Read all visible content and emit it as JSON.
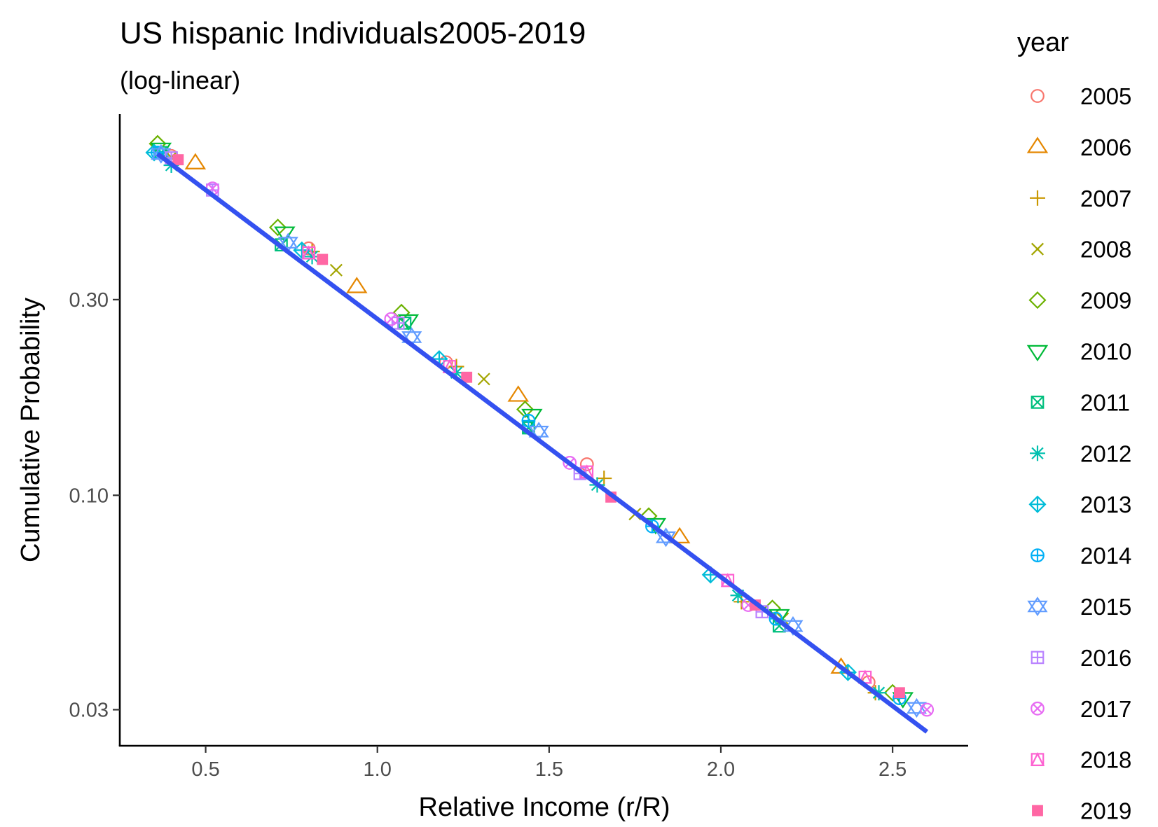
{
  "chart_data": {
    "type": "scatter",
    "title": "US hispanic Individuals2005-2019",
    "subtitle": "(log-linear)",
    "xlabel": "Relative Income (r/R)",
    "ylabel": "Cumulative Probability",
    "xlim": [
      0.25,
      2.72
    ],
    "ylim": [
      0.0245,
      0.85
    ],
    "y_scale": "log",
    "grid": false,
    "legend_position": "right",
    "legend_title": "year",
    "x_ticks": [
      0.5,
      1.0,
      1.5,
      2.0,
      2.5
    ],
    "x_tick_labels": [
      "0.5",
      "1.0",
      "1.5",
      "2.0",
      "2.5"
    ],
    "y_ticks": [
      0.3,
      0.1,
      0.03
    ],
    "y_tick_labels": [
      "0.30",
      "0.10",
      "0.03"
    ],
    "fit_line": {
      "color": "#3451F0",
      "x": [
        0.36,
        2.6
      ],
      "y": [
        0.68,
        0.0265
      ]
    },
    "series": [
      {
        "name": "2005",
        "color": "#F8766D",
        "shape": "circle-open",
        "x": [
          0.4,
          0.8,
          1.2,
          1.61,
          2.43
        ],
        "y": [
          0.672,
          0.4,
          0.211,
          0.119,
          0.035
        ]
      },
      {
        "name": "2006",
        "color": "#E58700",
        "shape": "triangle-up-open",
        "x": [
          0.47,
          0.94,
          1.41,
          1.88,
          2.35
        ],
        "y": [
          0.645,
          0.322,
          0.175,
          0.079,
          0.038
        ]
      },
      {
        "name": "2007",
        "color": "#C99800",
        "shape": "plus",
        "x": [
          0.39,
          0.81,
          1.23,
          1.66,
          2.06,
          2.45
        ],
        "y": [
          0.665,
          0.393,
          0.206,
          0.11,
          0.055,
          0.033
        ]
      },
      {
        "name": "2008",
        "color": "#A3A500",
        "shape": "cross",
        "x": [
          0.4,
          0.88,
          1.31,
          1.75,
          2.18
        ],
        "y": [
          0.667,
          0.354,
          0.192,
          0.09,
          0.05
        ]
      },
      {
        "name": "2009",
        "color": "#6BB100",
        "shape": "diamond-open",
        "x": [
          0.36,
          0.71,
          1.07,
          1.43,
          1.79,
          2.15,
          2.5
        ],
        "y": [
          0.72,
          0.45,
          0.279,
          0.162,
          0.089,
          0.053,
          0.033
        ]
      },
      {
        "name": "2010",
        "color": "#00BA38",
        "shape": "triangle-down-open",
        "x": [
          0.37,
          0.73,
          1.09,
          1.45,
          1.81,
          2.17,
          2.53
        ],
        "y": [
          0.7,
          0.437,
          0.267,
          0.157,
          0.085,
          0.051,
          0.032
        ]
      },
      {
        "name": "2011",
        "color": "#00BF7D",
        "shape": "square-cross",
        "x": [
          0.37,
          0.72,
          1.08,
          1.44,
          2.17
        ],
        "y": [
          0.685,
          0.408,
          0.263,
          0.146,
          0.048
        ]
      },
      {
        "name": "2012",
        "color": "#00C0AF",
        "shape": "asterisk",
        "x": [
          0.4,
          0.81,
          1.23,
          1.64,
          2.05,
          2.46
        ],
        "y": [
          0.638,
          0.382,
          0.199,
          0.106,
          0.057,
          0.033
        ]
      },
      {
        "name": "2013",
        "color": "#00BCD8",
        "shape": "diamond-plus",
        "x": [
          0.35,
          0.78,
          1.18,
          1.97,
          2.37
        ],
        "y": [
          0.685,
          0.396,
          0.215,
          0.064,
          0.037
        ]
      },
      {
        "name": "2014",
        "color": "#00B0F6",
        "shape": "circle-plus",
        "x": [
          0.36,
          1.44,
          1.8,
          2.16,
          2.52
        ],
        "y": [
          0.685,
          0.152,
          0.084,
          0.05,
          0.032
        ]
      },
      {
        "name": "2015",
        "color": "#619CFF",
        "shape": "star-of-david",
        "x": [
          0.37,
          0.74,
          1.1,
          1.47,
          1.84,
          2.21,
          2.57
        ],
        "y": [
          0.68,
          0.413,
          0.243,
          0.143,
          0.079,
          0.048,
          0.0303
        ]
      },
      {
        "name": "2016",
        "color": "#B983FF",
        "shape": "square-plus",
        "x": [
          0.4,
          0.52,
          1.06,
          1.59,
          2.12
        ],
        "y": [
          0.665,
          0.555,
          0.263,
          0.113,
          0.052
        ]
      },
      {
        "name": "2017",
        "color": "#E76BF3",
        "shape": "circle-cross",
        "x": [
          0.52,
          1.04,
          1.56,
          2.08,
          2.6
        ],
        "y": [
          0.56,
          0.269,
          0.12,
          0.054,
          0.03
        ]
      },
      {
        "name": "2018",
        "color": "#FD61D1",
        "shape": "square-triangle",
        "x": [
          0.8,
          1.21,
          1.61,
          2.02,
          2.42
        ],
        "y": [
          0.39,
          0.206,
          0.114,
          0.062,
          0.036
        ]
      },
      {
        "name": "2019",
        "color": "#FF67A4",
        "shape": "square-filled",
        "x": [
          0.42,
          0.84,
          1.26,
          1.68,
          2.1,
          2.52
        ],
        "y": [
          0.658,
          0.376,
          0.194,
          0.099,
          0.054,
          0.033
        ]
      }
    ]
  }
}
